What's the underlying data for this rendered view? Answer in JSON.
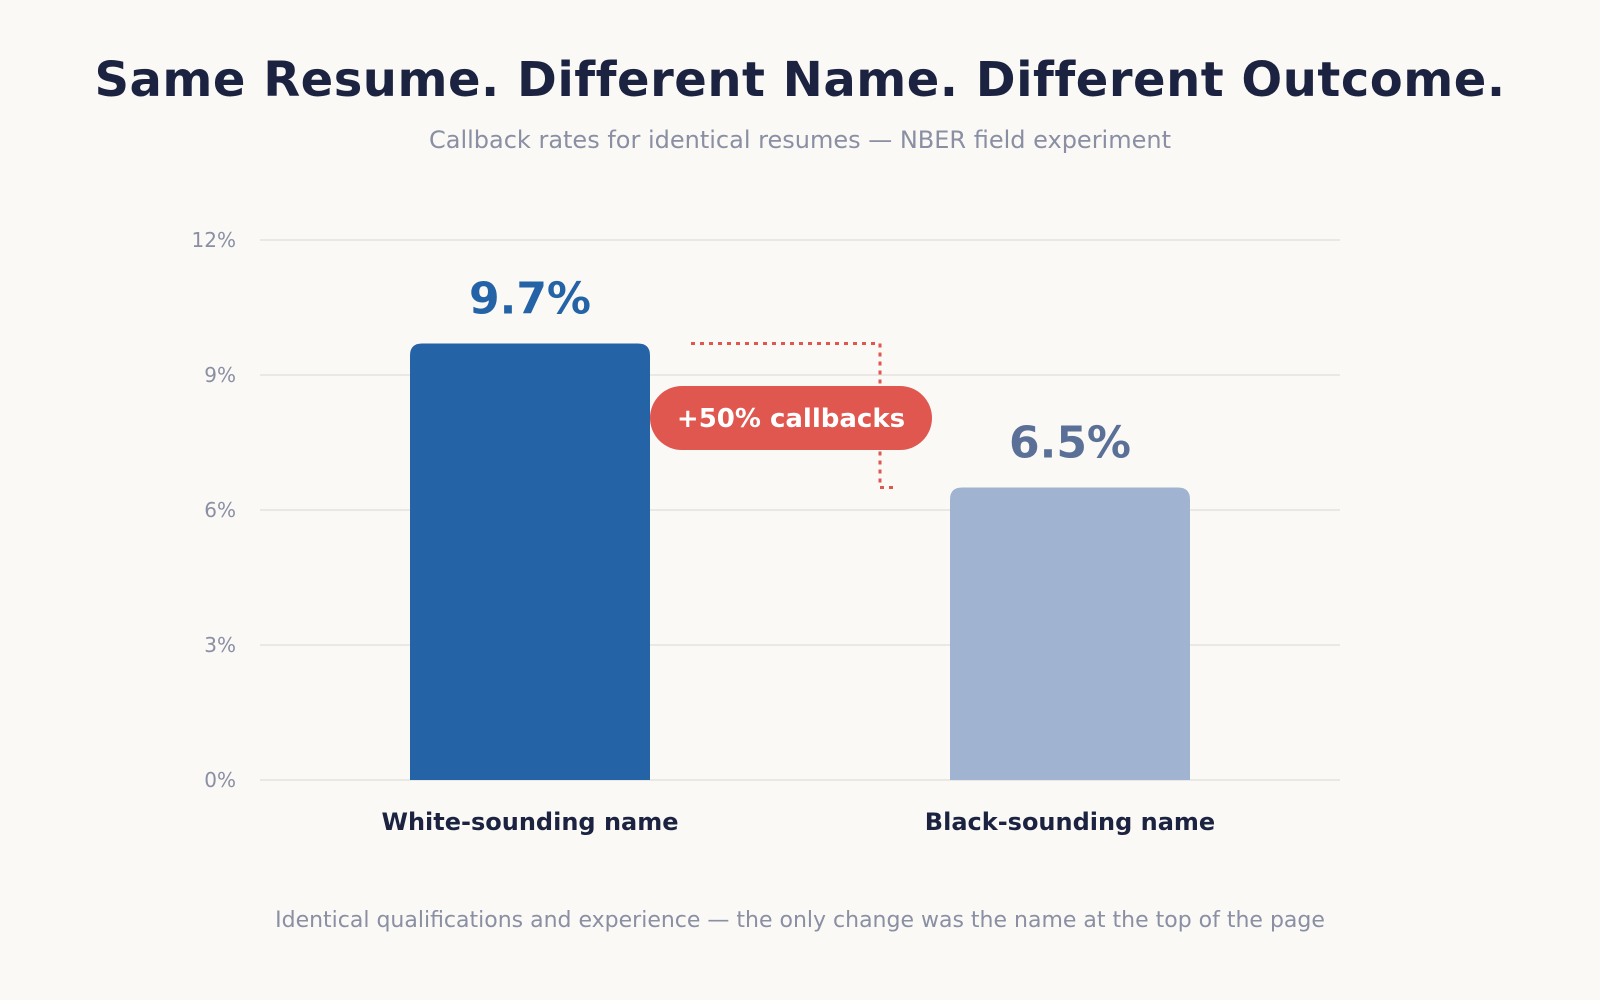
{
  "header": {
    "title": "Same Resume. Different Name. Different Outcome.",
    "subtitle": "Callback rates for identical resumes — NBER field experiment"
  },
  "footer": {
    "note": "Identical qualifications and experience — the only change was the name at the top of the page"
  },
  "annotation": {
    "label": "+50% callbacks",
    "color": "#e05750"
  },
  "chart_data": {
    "type": "bar",
    "title": "Same Resume. Different Name. Different Outcome.",
    "subtitle": "Callback rates for identical resumes — NBER field experiment",
    "xlabel": "",
    "ylabel": "",
    "ylim": [
      0,
      12
    ],
    "yticks": [
      0,
      3,
      6,
      9,
      12
    ],
    "ytick_labels": [
      "0%",
      "3%",
      "6%",
      "9%",
      "12%"
    ],
    "grid": true,
    "legend": "none",
    "categories": [
      "White-sounding name",
      "Black-sounding name"
    ],
    "values": [
      9.7,
      6.5
    ],
    "value_labels": [
      "9.7%",
      "6.5%"
    ],
    "bar_colors": [
      "#2463a6",
      "#a0b3d1"
    ],
    "value_label_colors": [
      "#2463a6",
      "#5b7096"
    ]
  }
}
